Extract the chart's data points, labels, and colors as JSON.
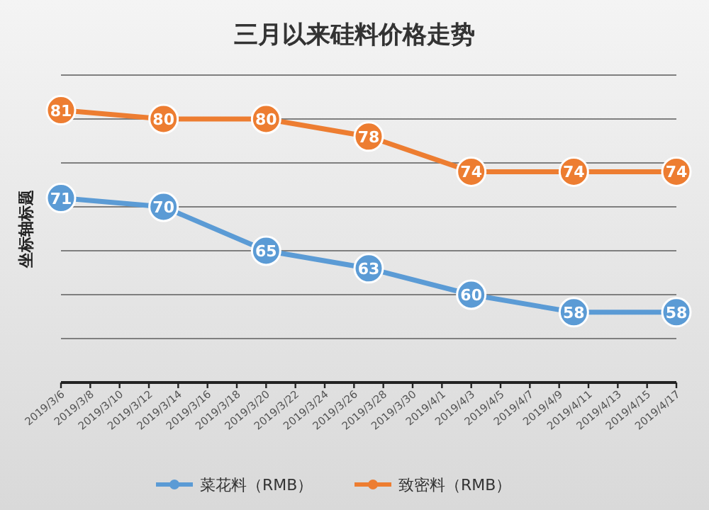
{
  "chart_data": {
    "type": "line",
    "title": "三月以来硅料价格走势",
    "ylabel": "坐标轴标题",
    "x": [
      "2019-03-06",
      "2019-03-13",
      "2019-03-20",
      "2019-03-27",
      "2019-04-03",
      "2019-04-10",
      "2019-04-17"
    ],
    "series": [
      {
        "name": "菜花料（RMB）",
        "color": "#5b9bd5",
        "values": [
          71,
          70,
          65,
          63,
          60,
          58,
          58
        ]
      },
      {
        "name": "致密料（RMB）",
        "color": "#ed7d31",
        "values": [
          81,
          80,
          80,
          78,
          74,
          74,
          74
        ]
      }
    ],
    "xlim": [
      "2019-03-06",
      "2019-04-17"
    ],
    "xticks": [
      {
        "value": "2019-03-06",
        "label": "2019/3/6"
      },
      {
        "value": "2019-03-08",
        "label": "2019/3/8"
      },
      {
        "value": "2019-03-10",
        "label": "2019/3/10"
      },
      {
        "value": "2019-03-12",
        "label": "2019/3/12"
      },
      {
        "value": "2019-03-14",
        "label": "2019/3/14"
      },
      {
        "value": "2019-03-16",
        "label": "2019/3/16"
      },
      {
        "value": "2019-03-18",
        "label": "2019/3/18"
      },
      {
        "value": "2019-03-20",
        "label": "2019/3/20"
      },
      {
        "value": "2019-03-22",
        "label": "2019/3/22"
      },
      {
        "value": "2019-03-24",
        "label": "2019/3/24"
      },
      {
        "value": "2019-03-26",
        "label": "2019/3/26"
      },
      {
        "value": "2019-03-28",
        "label": "2019/3/28"
      },
      {
        "value": "2019-03-30",
        "label": "2019/3/30"
      },
      {
        "value": "2019-04-01",
        "label": "2019/4/1"
      },
      {
        "value": "2019-04-03",
        "label": "2019/4/3"
      },
      {
        "value": "2019-04-05",
        "label": "2019/4/5"
      },
      {
        "value": "2019-04-07",
        "label": "2019/4/7"
      },
      {
        "value": "2019-04-09",
        "label": "2019/4/9"
      },
      {
        "value": "2019-04-11",
        "label": "2019/4/11"
      },
      {
        "value": "2019-04-13",
        "label": "2019/4/13"
      },
      {
        "value": "2019-04-15",
        "label": "2019/4/15"
      },
      {
        "value": "2019-04-17",
        "label": "2019/4/17"
      }
    ],
    "ylim": [
      50,
      85
    ],
    "yticks": [
      {
        "value": 55,
        "label": null
      },
      {
        "value": 60,
        "label": null
      },
      {
        "value": 65,
        "label": null
      },
      {
        "value": 70,
        "label": null
      },
      {
        "value": 75,
        "label": null
      },
      {
        "value": 80,
        "label": null
      },
      {
        "value": 85,
        "label": null
      }
    ],
    "tick_labels": "x",
    "grid": "y",
    "legend": "bottom",
    "marker": "circle",
    "line_style": "solid",
    "data_labels": true
  }
}
